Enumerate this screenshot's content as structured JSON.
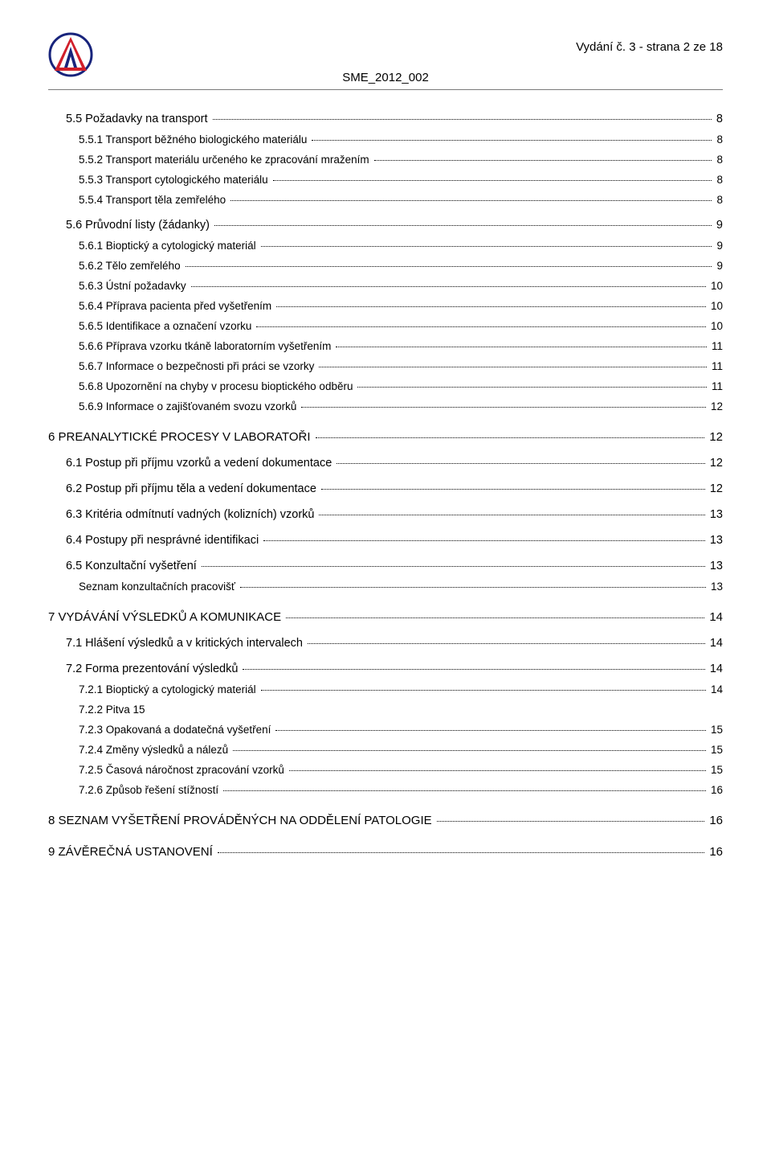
{
  "header": {
    "doc_id": "SME_2012_002",
    "page_meta": "Vydání č. 3 - strana 2 ze 18",
    "logo": {
      "circle_stroke": "#18247c",
      "a_shape_fill": "#d11f2a",
      "triangle_fill": "#18247c"
    }
  },
  "toc": [
    {
      "level": 1,
      "label": "5.5 Požadavky na transport",
      "page": "8"
    },
    {
      "level": 2,
      "label": "5.5.1 Transport běžného biologického materiálu",
      "page": "8"
    },
    {
      "level": 2,
      "label": "5.5.2 Transport materiálu určeného ke zpracování mražením",
      "page": "8"
    },
    {
      "level": 2,
      "label": "5.5.3 Transport cytologického materiálu",
      "page": "8"
    },
    {
      "level": 2,
      "label": "5.5.4 Transport těla zemřelého",
      "page": "8"
    },
    {
      "level": 1,
      "label": "5.6 Průvodní listy (žádanky)",
      "page": "9"
    },
    {
      "level": 2,
      "label": "5.6.1 Bioptický a cytologický materiál",
      "page": "9"
    },
    {
      "level": 2,
      "label": "5.6.2 Tělo zemřelého",
      "page": "9"
    },
    {
      "level": 2,
      "label": "5.6.3 Ústní požadavky",
      "page": "10"
    },
    {
      "level": 2,
      "label": "5.6.4 Příprava pacienta před vyšetřením",
      "page": "10"
    },
    {
      "level": 2,
      "label": "5.6.5 Identifikace a označení vzorku",
      "page": "10"
    },
    {
      "level": 2,
      "label": "5.6.6 Příprava vzorku tkáně laboratorním vyšetřením",
      "page": "11"
    },
    {
      "level": 2,
      "label": "5.6.7 Informace o bezpečnosti při práci se vzorky",
      "page": "11"
    },
    {
      "level": 2,
      "label": "5.6.8 Upozornění na chyby v procesu bioptického odběru",
      "page": "11"
    },
    {
      "level": 2,
      "label": "5.6.9 Informace o zajišťovaném svozu vzorků",
      "page": "12"
    },
    {
      "level": 0,
      "label": "6 PREANALYTICKÉ PROCESY V LABORATOŘI",
      "page": "12"
    },
    {
      "level": 1,
      "label": "6.1 Postup při příjmu vzorků a vedení dokumentace",
      "page": "12"
    },
    {
      "level": 1,
      "label": "6.2 Postup při příjmu těla a vedení dokumentace",
      "page": "12"
    },
    {
      "level": 1,
      "label": "6.3 Kritéria odmítnutí vadných (kolizních) vzorků",
      "page": "13"
    },
    {
      "level": 1,
      "label": "6.4 Postupy při nesprávné identifikaci",
      "page": "13"
    },
    {
      "level": 1,
      "label": "6.5 Konzultační vyšetření",
      "page": "13"
    },
    {
      "level": 2,
      "label": "Seznam konzultačních pracovišť",
      "page": "13"
    },
    {
      "level": 0,
      "label": "7 VYDÁVÁNÍ VÝSLEDKŮ  A KOMUNIKACE",
      "page": "14"
    },
    {
      "level": 1,
      "label": "7.1 Hlášení výsledků a v kritických intervalech",
      "page": "14"
    },
    {
      "level": 1,
      "label": "7.2 Forma prezentování výsledků",
      "page": "14"
    },
    {
      "level": 2,
      "label": "7.2.1 Bioptický a cytologický materiál",
      "page": "14"
    },
    {
      "level": 2,
      "label": "7.2.2 Pitva        15",
      "page": "",
      "no_dots": true
    },
    {
      "level": 2,
      "label": "7.2.3 Opakovaná a dodatečná vyšetření",
      "page": "15"
    },
    {
      "level": 2,
      "label": "7.2.4 Změny výsledků a nálezů",
      "page": "15"
    },
    {
      "level": 2,
      "label": "7.2.5 Časová náročnost zpracování vzorků",
      "page": "15"
    },
    {
      "level": 2,
      "label": "7.2.6 Způsob řešení stížností",
      "page": "16"
    },
    {
      "level": 0,
      "label": "8 SEZNAM VYŠETŘENÍ PROVÁDĚNÝCH NA ODDĚLENÍ PATOLOGIE",
      "page": "16"
    },
    {
      "level": 0,
      "label": "9 ZÁVĚREČNÁ USTANOVENÍ",
      "page": "16"
    }
  ]
}
